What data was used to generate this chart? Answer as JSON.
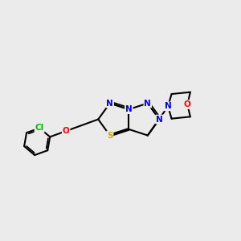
{
  "background_color": "#ebebeb",
  "atom_colors": {
    "C": "#000000",
    "N": "#0000ee",
    "S": "#ccaa00",
    "O": "#ff0000",
    "Cl": "#00bb00",
    "H": "#000000"
  },
  "bond_color": "#000000",
  "bond_width": 1.5
}
